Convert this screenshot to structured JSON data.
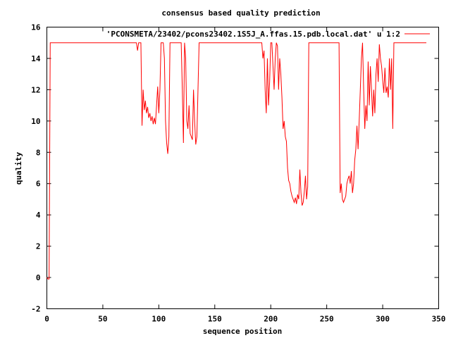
{
  "chart_data": {
    "type": "line",
    "title": "consensus based quality prediction",
    "xlabel": "sequence position",
    "ylabel": "quality",
    "xlim": [
      0,
      350
    ],
    "ylim": [
      -2,
      16
    ],
    "x_ticks": [
      0,
      50,
      100,
      150,
      200,
      250,
      300,
      350
    ],
    "y_ticks": [
      -2,
      0,
      2,
      4,
      6,
      8,
      10,
      12,
      14,
      16
    ],
    "grid": false,
    "legend_position": "top-right",
    "series": [
      {
        "name": "'PCONSMETA/23402/pcons23402.1S5J_A.ffas.15.pdb.local.dat' u 1:2",
        "color": "#ff0000",
        "points": [
          [
            0,
            0
          ],
          [
            1,
            -0.1
          ],
          [
            2,
            -0.1
          ],
          [
            3,
            15
          ],
          [
            4,
            15
          ],
          [
            20,
            15
          ],
          [
            40,
            15
          ],
          [
            60,
            15
          ],
          [
            80,
            15
          ],
          [
            81,
            14.5
          ],
          [
            82,
            15
          ],
          [
            83,
            15
          ],
          [
            84,
            15
          ],
          [
            85,
            9.7
          ],
          [
            86,
            12
          ],
          [
            87,
            10.7
          ],
          [
            88,
            11.3
          ],
          [
            89,
            10.5
          ],
          [
            90,
            10.9
          ],
          [
            91,
            10.2
          ],
          [
            92,
            10.5
          ],
          [
            93,
            10.0
          ],
          [
            94,
            10.3
          ],
          [
            95,
            9.8
          ],
          [
            96,
            10.2
          ],
          [
            97,
            9.8
          ],
          [
            98,
            11
          ],
          [
            99,
            12.2
          ],
          [
            100,
            10.5
          ],
          [
            101,
            12
          ],
          [
            102,
            15
          ],
          [
            103,
            15
          ],
          [
            104,
            15
          ],
          [
            105,
            14
          ],
          [
            106,
            10
          ],
          [
            107,
            8.6
          ],
          [
            108,
            7.9
          ],
          [
            109,
            9
          ],
          [
            110,
            15
          ],
          [
            115,
            15
          ],
          [
            120,
            15
          ],
          [
            121,
            12
          ],
          [
            122,
            8.6
          ],
          [
            123,
            15
          ],
          [
            124,
            14
          ],
          [
            125,
            10
          ],
          [
            126,
            9.5
          ],
          [
            127,
            11
          ],
          [
            128,
            9.2
          ],
          [
            129,
            9.0
          ],
          [
            130,
            8.8
          ],
          [
            131,
            12
          ],
          [
            132,
            10
          ],
          [
            133,
            8.5
          ],
          [
            134,
            9
          ],
          [
            135,
            12
          ],
          [
            136,
            15
          ],
          [
            140,
            15
          ],
          [
            160,
            15
          ],
          [
            180,
            15
          ],
          [
            192,
            15
          ],
          [
            193,
            14
          ],
          [
            194,
            14.5
          ],
          [
            195,
            12
          ],
          [
            196,
            10.5
          ],
          [
            197,
            14
          ],
          [
            198,
            11
          ],
          [
            199,
            12.5
          ],
          [
            200,
            15
          ],
          [
            201,
            15
          ],
          [
            202,
            13.5
          ],
          [
            203,
            12
          ],
          [
            204,
            14
          ],
          [
            205,
            15
          ],
          [
            206,
            14.8
          ],
          [
            207,
            12
          ],
          [
            208,
            14
          ],
          [
            209,
            13
          ],
          [
            210,
            11.5
          ],
          [
            211,
            9.5
          ],
          [
            212,
            10
          ],
          [
            213,
            9
          ],
          [
            214,
            8.7
          ],
          [
            215,
            7
          ],
          [
            216,
            6.2
          ],
          [
            217,
            6.0
          ],
          [
            218,
            5.5
          ],
          [
            219,
            5.2
          ],
          [
            220,
            5.0
          ],
          [
            221,
            4.8
          ],
          [
            222,
            5.1
          ],
          [
            223,
            4.7
          ],
          [
            224,
            5.3
          ],
          [
            225,
            5.0
          ],
          [
            226,
            6.9
          ],
          [
            227,
            5.4
          ],
          [
            228,
            4.6
          ],
          [
            229,
            4.8
          ],
          [
            230,
            5.5
          ],
          [
            231,
            6.5
          ],
          [
            232,
            5.0
          ],
          [
            233,
            5.8
          ],
          [
            234,
            15
          ],
          [
            240,
            15
          ],
          [
            250,
            15
          ],
          [
            260,
            15
          ],
          [
            261,
            15
          ],
          [
            262,
            5.4
          ],
          [
            263,
            6.0
          ],
          [
            264,
            5.0
          ],
          [
            265,
            4.8
          ],
          [
            266,
            5.0
          ],
          [
            267,
            5.2
          ],
          [
            268,
            6.0
          ],
          [
            269,
            6.3
          ],
          [
            270,
            6.5
          ],
          [
            271,
            6.0
          ],
          [
            272,
            6.8
          ],
          [
            273,
            5.4
          ],
          [
            274,
            6.0
          ],
          [
            275,
            7.5
          ],
          [
            276,
            8.2
          ],
          [
            277,
            9.7
          ],
          [
            278,
            8.2
          ],
          [
            279,
            10
          ],
          [
            280,
            12
          ],
          [
            281,
            14
          ],
          [
            282,
            15
          ],
          [
            283,
            12
          ],
          [
            284,
            9.5
          ],
          [
            285,
            11
          ],
          [
            286,
            10
          ],
          [
            287,
            13.8
          ],
          [
            288,
            11
          ],
          [
            289,
            13.5
          ],
          [
            290,
            12
          ],
          [
            291,
            10.3
          ],
          [
            292,
            12
          ],
          [
            293,
            10.5
          ],
          [
            294,
            13
          ],
          [
            295,
            14
          ],
          [
            296,
            12.5
          ],
          [
            297,
            14.9
          ],
          [
            298,
            14
          ],
          [
            299,
            13.5
          ],
          [
            300,
            12.6
          ],
          [
            301,
            11.8
          ],
          [
            302,
            13.4
          ],
          [
            303,
            11.8
          ],
          [
            304,
            12.2
          ],
          [
            305,
            11.5
          ],
          [
            306,
            14
          ],
          [
            307,
            12
          ],
          [
            308,
            14
          ],
          [
            309,
            9.5
          ],
          [
            310,
            15
          ],
          [
            320,
            15
          ],
          [
            330,
            15
          ],
          [
            339,
            15
          ]
        ]
      }
    ]
  }
}
